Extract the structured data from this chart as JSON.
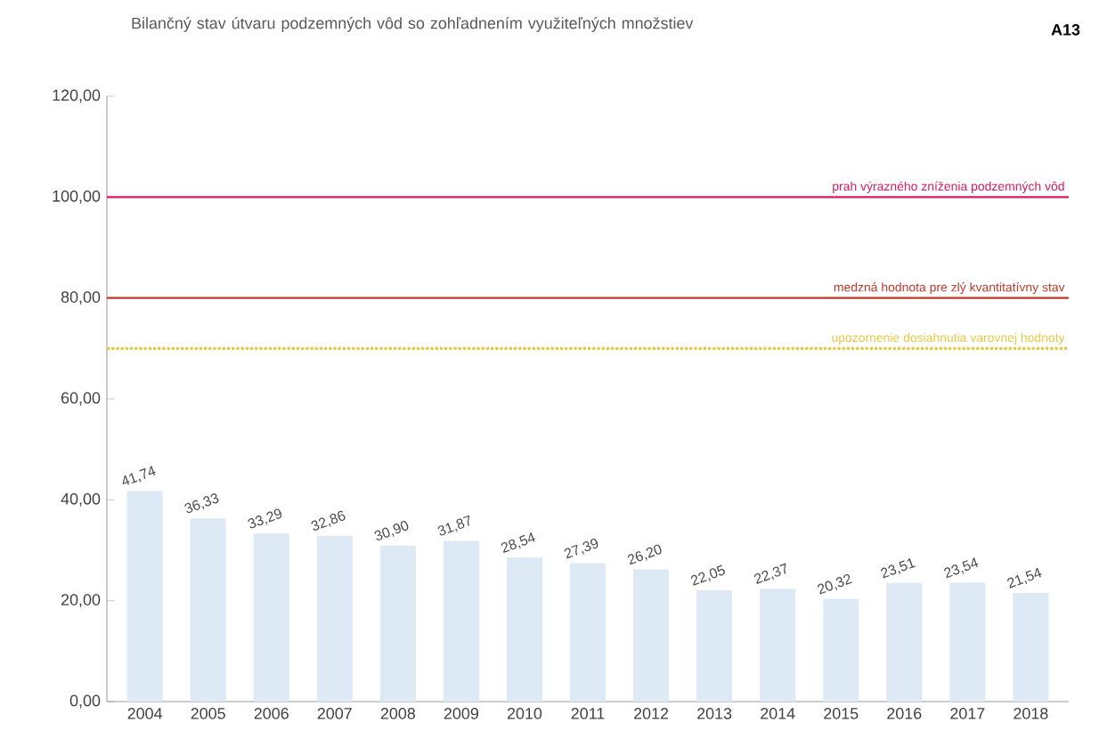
{
  "chart_data": {
    "type": "bar",
    "title": "Bilančný stav útvaru podzemných vôd so zohľadnením využiteľných množstiev",
    "annotations": [
      "A13"
    ],
    "categories": [
      "2004",
      "2005",
      "2006",
      "2007",
      "2008",
      "2009",
      "2010",
      "2011",
      "2012",
      "2013",
      "2014",
      "2015",
      "2016",
      "2017",
      "2018"
    ],
    "values": [
      41.74,
      36.33,
      33.29,
      32.86,
      30.9,
      31.87,
      28.54,
      27.39,
      26.2,
      22.05,
      22.37,
      20.32,
      23.51,
      23.54,
      21.54
    ],
    "value_labels": [
      "41,74",
      "36,33",
      "33,29",
      "32,86",
      "30,90",
      "31,87",
      "28,54",
      "27,39",
      "26,20",
      "22,05",
      "22,37",
      "20,32",
      "23,51",
      "23,54",
      "21,54"
    ],
    "color": "#dde9f5",
    "ylim": [
      0,
      120
    ],
    "yticks": [
      {
        "value": 0,
        "label": "0,00"
      },
      {
        "value": 20,
        "label": "20,00"
      },
      {
        "value": 40,
        "label": "40,00"
      },
      {
        "value": 60,
        "label": "60,00"
      },
      {
        "value": 80,
        "label": "80,00"
      },
      {
        "value": 100,
        "label": "100,00"
      },
      {
        "value": 120,
        "label": "120,00"
      }
    ],
    "ref_lines": [
      {
        "axis": "y",
        "value": 100,
        "label": "prah výrazného zníženia podzemných vôd",
        "color": "#d81b60",
        "line_style": "solid"
      },
      {
        "axis": "y",
        "value": 80,
        "label": "medzná hodnota pre zlý kvantitatívny stav",
        "color": "#c0392b",
        "line_style": "solid"
      },
      {
        "axis": "y",
        "value": 70,
        "label": "upozornenie dosiahnutia varovnej hodnoty",
        "color": "#e8c840",
        "line_style": "dotted"
      }
    ],
    "grid": false
  }
}
